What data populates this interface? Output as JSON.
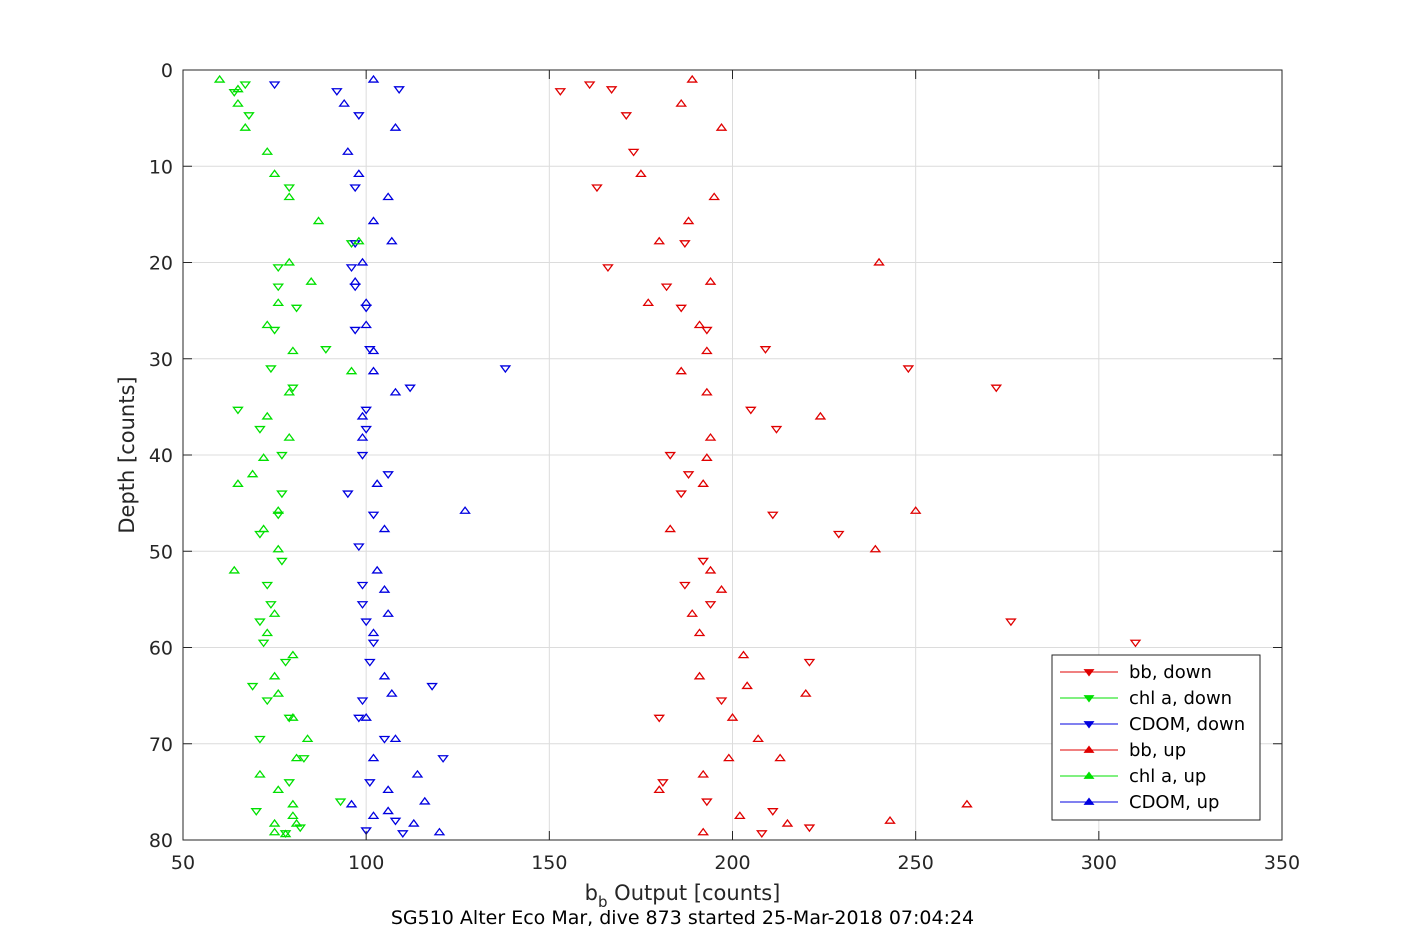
{
  "chart_data": {
    "type": "scatter",
    "xlabel_main": "b",
    "xlabel_sub": "b",
    "xlabel_rest": " Output [counts]",
    "ylabel": "Depth [counts]",
    "caption": "SG510 Alter Eco Mar, dive 873 started 25-Mar-2018 07:04:24",
    "xlim": [
      50,
      350
    ],
    "ylim": [
      0,
      80
    ],
    "y_reversed": true,
    "grid": true,
    "legend_placement": "bottom-right",
    "xticks": [
      50,
      100,
      150,
      200,
      250,
      300,
      350
    ],
    "yticks": [
      0,
      10,
      20,
      30,
      40,
      50,
      60,
      70,
      80
    ],
    "series": [
      {
        "name": "bb, down",
        "color": "#e00000",
        "marker": "triangle-down",
        "points": [
          [
            161,
            1.5
          ],
          [
            153,
            2.2
          ],
          [
            167,
            2.0
          ],
          [
            171,
            4.7
          ],
          [
            173,
            8.5
          ],
          [
            163,
            12.2
          ],
          [
            187,
            18.0
          ],
          [
            166,
            20.5
          ],
          [
            182,
            22.5
          ],
          [
            186,
            24.7
          ],
          [
            193,
            27.0
          ],
          [
            209,
            29.0
          ],
          [
            248,
            31.0
          ],
          [
            272,
            33.0
          ],
          [
            205,
            35.3
          ],
          [
            212,
            37.3
          ],
          [
            183,
            40.0
          ],
          [
            188,
            42.0
          ],
          [
            186,
            44.0
          ],
          [
            211,
            46.2
          ],
          [
            229,
            48.2
          ],
          [
            192,
            51.0
          ],
          [
            187,
            53.5
          ],
          [
            194,
            55.5
          ],
          [
            276,
            57.3
          ],
          [
            310,
            59.5
          ],
          [
            221,
            61.5
          ],
          [
            197,
            65.5
          ],
          [
            180,
            67.3
          ],
          [
            181,
            74.0
          ],
          [
            193,
            76.0
          ],
          [
            211,
            77.0
          ],
          [
            221,
            78.7
          ],
          [
            208,
            79.3
          ]
        ]
      },
      {
        "name": "chl a, down",
        "color": "#00e000",
        "marker": "triangle-down",
        "points": [
          [
            67,
            1.5
          ],
          [
            64,
            2.3
          ],
          [
            68,
            4.7
          ],
          [
            79,
            12.2
          ],
          [
            96,
            18.0
          ],
          [
            76,
            20.5
          ],
          [
            76,
            22.5
          ],
          [
            81,
            24.7
          ],
          [
            75,
            27.0
          ],
          [
            89,
            29.0
          ],
          [
            74,
            31.0
          ],
          [
            80,
            33.0
          ],
          [
            65,
            35.3
          ],
          [
            71,
            37.3
          ],
          [
            77,
            40.0
          ],
          [
            77,
            44.0
          ],
          [
            76,
            46.2
          ],
          [
            71,
            48.2
          ],
          [
            77,
            51.0
          ],
          [
            73,
            53.5
          ],
          [
            74,
            55.5
          ],
          [
            71,
            57.3
          ],
          [
            72,
            59.5
          ],
          [
            78,
            61.5
          ],
          [
            69,
            64.0
          ],
          [
            73,
            65.5
          ],
          [
            79,
            67.3
          ],
          [
            71,
            69.5
          ],
          [
            83,
            71.5
          ],
          [
            79,
            74.0
          ],
          [
            93,
            76.0
          ],
          [
            70,
            77.0
          ],
          [
            82,
            78.7
          ],
          [
            78,
            79.3
          ]
        ]
      },
      {
        "name": "CDOM, down",
        "color": "#0000e0",
        "marker": "triangle-down",
        "points": [
          [
            75,
            1.5
          ],
          [
            92,
            2.2
          ],
          [
            109,
            2.0
          ],
          [
            98,
            4.7
          ],
          [
            97,
            12.2
          ],
          [
            97,
            18.0
          ],
          [
            96,
            20.5
          ],
          [
            97,
            22.5
          ],
          [
            100,
            24.7
          ],
          [
            97,
            27.0
          ],
          [
            101,
            29.0
          ],
          [
            138,
            31.0
          ],
          [
            112,
            33.0
          ],
          [
            100,
            35.3
          ],
          [
            100,
            37.3
          ],
          [
            99,
            40.0
          ],
          [
            106,
            42.0
          ],
          [
            95,
            44.0
          ],
          [
            102,
            46.2
          ],
          [
            98,
            49.5
          ],
          [
            99,
            53.5
          ],
          [
            99,
            55.5
          ],
          [
            100,
            57.3
          ],
          [
            102,
            59.5
          ],
          [
            101,
            61.5
          ],
          [
            118,
            64.0
          ],
          [
            99,
            65.5
          ],
          [
            98,
            67.3
          ],
          [
            105,
            69.5
          ],
          [
            121,
            71.5
          ],
          [
            101,
            74.0
          ],
          [
            108,
            78.0
          ],
          [
            110,
            79.3
          ],
          [
            100,
            79.0
          ]
        ]
      },
      {
        "name": "bb, up",
        "color": "#e00000",
        "marker": "triangle-up",
        "points": [
          [
            189,
            1.0
          ],
          [
            186,
            3.5
          ],
          [
            197,
            6.0
          ],
          [
            175,
            10.8
          ],
          [
            195,
            13.2
          ],
          [
            188,
            15.7
          ],
          [
            180,
            17.8
          ],
          [
            240,
            20.0
          ],
          [
            194,
            22.0
          ],
          [
            177,
            24.2
          ],
          [
            191,
            26.5
          ],
          [
            193,
            29.2
          ],
          [
            186,
            31.3
          ],
          [
            193,
            33.5
          ],
          [
            224,
            36.0
          ],
          [
            194,
            38.2
          ],
          [
            193,
            40.3
          ],
          [
            192,
            43.0
          ],
          [
            250,
            45.8
          ],
          [
            183,
            47.7
          ],
          [
            239,
            49.8
          ],
          [
            194,
            52.0
          ],
          [
            197,
            54.0
          ],
          [
            189,
            56.5
          ],
          [
            191,
            58.5
          ],
          [
            203,
            60.8
          ],
          [
            191,
            63.0
          ],
          [
            204,
            64.0
          ],
          [
            220,
            64.8
          ],
          [
            200,
            67.3
          ],
          [
            207,
            69.5
          ],
          [
            199,
            71.5
          ],
          [
            213,
            71.5
          ],
          [
            192,
            73.2
          ],
          [
            180,
            74.8
          ],
          [
            264,
            76.3
          ],
          [
            202,
            77.5
          ],
          [
            215,
            78.3
          ],
          [
            243,
            78.0
          ],
          [
            192,
            79.2
          ]
        ]
      },
      {
        "name": "chl a, up",
        "color": "#00e000",
        "marker": "triangle-up",
        "points": [
          [
            60,
            1.0
          ],
          [
            65,
            2.0
          ],
          [
            65,
            3.5
          ],
          [
            67,
            6.0
          ],
          [
            73,
            8.5
          ],
          [
            75,
            10.8
          ],
          [
            79,
            13.2
          ],
          [
            87,
            15.7
          ],
          [
            98,
            17.8
          ],
          [
            79,
            20.0
          ],
          [
            85,
            22.0
          ],
          [
            76,
            24.2
          ],
          [
            73,
            26.5
          ],
          [
            80,
            29.2
          ],
          [
            96,
            31.3
          ],
          [
            79,
            33.5
          ],
          [
            73,
            36.0
          ],
          [
            79,
            38.2
          ],
          [
            72,
            40.3
          ],
          [
            69,
            42.0
          ],
          [
            65,
            43.0
          ],
          [
            76,
            45.8
          ],
          [
            72,
            47.7
          ],
          [
            76,
            49.8
          ],
          [
            64,
            52.0
          ],
          [
            75,
            56.5
          ],
          [
            73,
            58.5
          ],
          [
            80,
            60.8
          ],
          [
            75,
            63.0
          ],
          [
            76,
            64.8
          ],
          [
            80,
            67.3
          ],
          [
            84,
            69.5
          ],
          [
            81,
            71.5
          ],
          [
            71,
            73.2
          ],
          [
            76,
            74.8
          ],
          [
            80,
            76.3
          ],
          [
            80,
            77.5
          ],
          [
            75,
            78.3
          ],
          [
            81,
            78.3
          ],
          [
            75,
            79.2
          ],
          [
            78,
            79.4
          ]
        ]
      },
      {
        "name": "CDOM, up",
        "color": "#0000e0",
        "marker": "triangle-up",
        "points": [
          [
            102,
            1.0
          ],
          [
            94,
            3.5
          ],
          [
            108,
            6.0
          ],
          [
            95,
            8.5
          ],
          [
            98,
            10.8
          ],
          [
            106,
            13.2
          ],
          [
            102,
            15.7
          ],
          [
            107,
            17.8
          ],
          [
            99,
            20.0
          ],
          [
            97,
            22.0
          ],
          [
            100,
            24.2
          ],
          [
            100,
            26.5
          ],
          [
            102,
            29.2
          ],
          [
            102,
            31.3
          ],
          [
            108,
            33.5
          ],
          [
            99,
            36.0
          ],
          [
            99,
            38.2
          ],
          [
            103,
            43.0
          ],
          [
            127,
            45.8
          ],
          [
            105,
            47.7
          ],
          [
            103,
            52.0
          ],
          [
            105,
            54.0
          ],
          [
            106,
            56.5
          ],
          [
            102,
            58.5
          ],
          [
            105,
            63.0
          ],
          [
            107,
            64.8
          ],
          [
            100,
            67.3
          ],
          [
            108,
            69.5
          ],
          [
            102,
            71.5
          ],
          [
            114,
            73.2
          ],
          [
            106,
            74.8
          ],
          [
            116,
            76.0
          ],
          [
            96,
            76.3
          ],
          [
            102,
            77.5
          ],
          [
            106,
            77.0
          ],
          [
            113,
            78.3
          ],
          [
            120,
            79.2
          ]
        ]
      }
    ]
  }
}
